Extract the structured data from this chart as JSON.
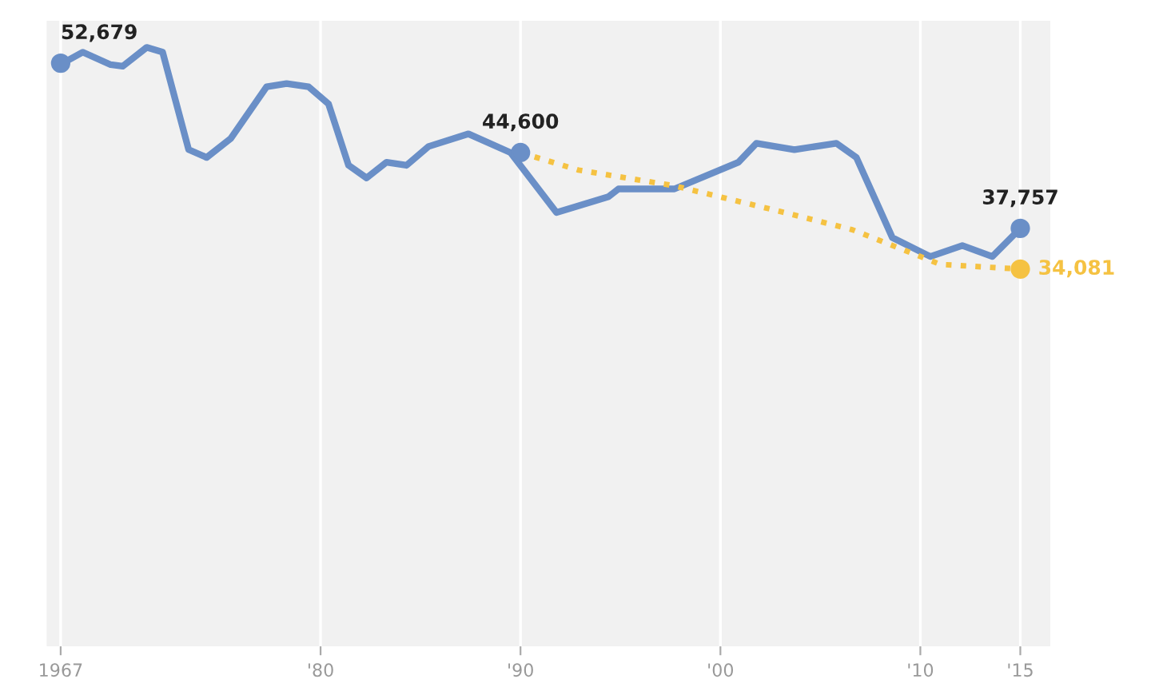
{
  "chart_data": {
    "type": "area",
    "xlim": [
      1966.3,
      2016.5
    ],
    "ylim": [
      0,
      56500
    ],
    "xticks": [
      {
        "value": 1967,
        "label": "1967"
      },
      {
        "value": 1980,
        "label": "'80"
      },
      {
        "value": 1990,
        "label": "'90"
      },
      {
        "value": 2000,
        "label": "'00"
      },
      {
        "value": 2010,
        "label": "'10"
      },
      {
        "value": 2015,
        "label": "'15"
      }
    ],
    "tick_labels": "x",
    "grid": "x",
    "series": [
      {
        "type": "line",
        "color": "#6a8fc7",
        "x": [
          1967.1,
          1968.1,
          1969.5,
          1970.1,
          1971.3,
          1972.1,
          1973.4,
          1974.3,
          1975.5,
          1977.3,
          1978.3,
          1979.4,
          1980.4,
          1981.4,
          1982.3,
          1983.3,
          1984.3,
          1985.4,
          1987.4,
          1989.5,
          1991.8,
          1994.4,
          1994.9,
          1997.7,
          2000.9,
          2001.8,
          2003.7,
          2005.8,
          2006.8,
          2008.6,
          2010.5,
          2012.1,
          2013.6,
          2015
        ],
        "values": [
          52679,
          53670,
          52540,
          52400,
          54100,
          53670,
          44870,
          44160,
          45860,
          50550,
          50830,
          50550,
          48990,
          43450,
          42310,
          43730,
          43450,
          45150,
          46290,
          44600,
          39190,
          40610,
          41320,
          41320,
          43730,
          45440,
          44870,
          45440,
          44160,
          36920,
          35210,
          36200,
          35210,
          37757
        ]
      },
      {
        "type": "line",
        "line_style": "dotted",
        "color": "#f5c242",
        "x": [
          1990,
          1992.9,
          1997.7,
          2003.2,
          2006.6,
          2011,
          2015
        ],
        "values": [
          44600,
          43020,
          41600,
          39190,
          37630,
          34500,
          34081
        ]
      },
      {
        "type": "scatter",
        "color": "#6a8fc7",
        "x": [
          1967,
          1990,
          2015
        ],
        "values": [
          52679,
          44600,
          37757
        ],
        "value_labels": [
          "52,679",
          "44,600",
          "37,757"
        ]
      },
      {
        "type": "scatter",
        "color": "#f5c242",
        "x": [
          2015
        ],
        "values": [
          34081
        ],
        "value_labels": [
          "34,081"
        ]
      }
    ]
  }
}
